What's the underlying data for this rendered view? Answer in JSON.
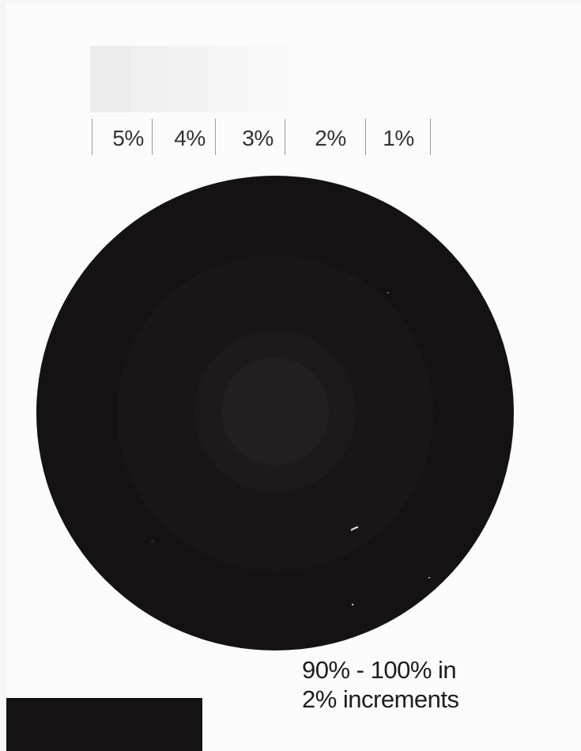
{
  "step_labels": [
    "5%",
    "4%",
    "3%",
    "2%",
    "1%"
  ],
  "caption": {
    "line1": "90% - 100% in",
    "line2": "2% increments"
  },
  "colors": {
    "page": "#fbfbfb",
    "background": "#f6f6f6",
    "circle": "#141213",
    "ring_outer": "#181617",
    "ring_middle": "#1c1a1b",
    "ring_inner": "#211f20",
    "light_ramp": [
      "#ececec",
      "#efefef",
      "#f2f2f2",
      "#f5f5f5",
      "#f8f8f8"
    ],
    "text": "#333333",
    "tick": "#9a9a9a",
    "black_patch": "#141213"
  }
}
